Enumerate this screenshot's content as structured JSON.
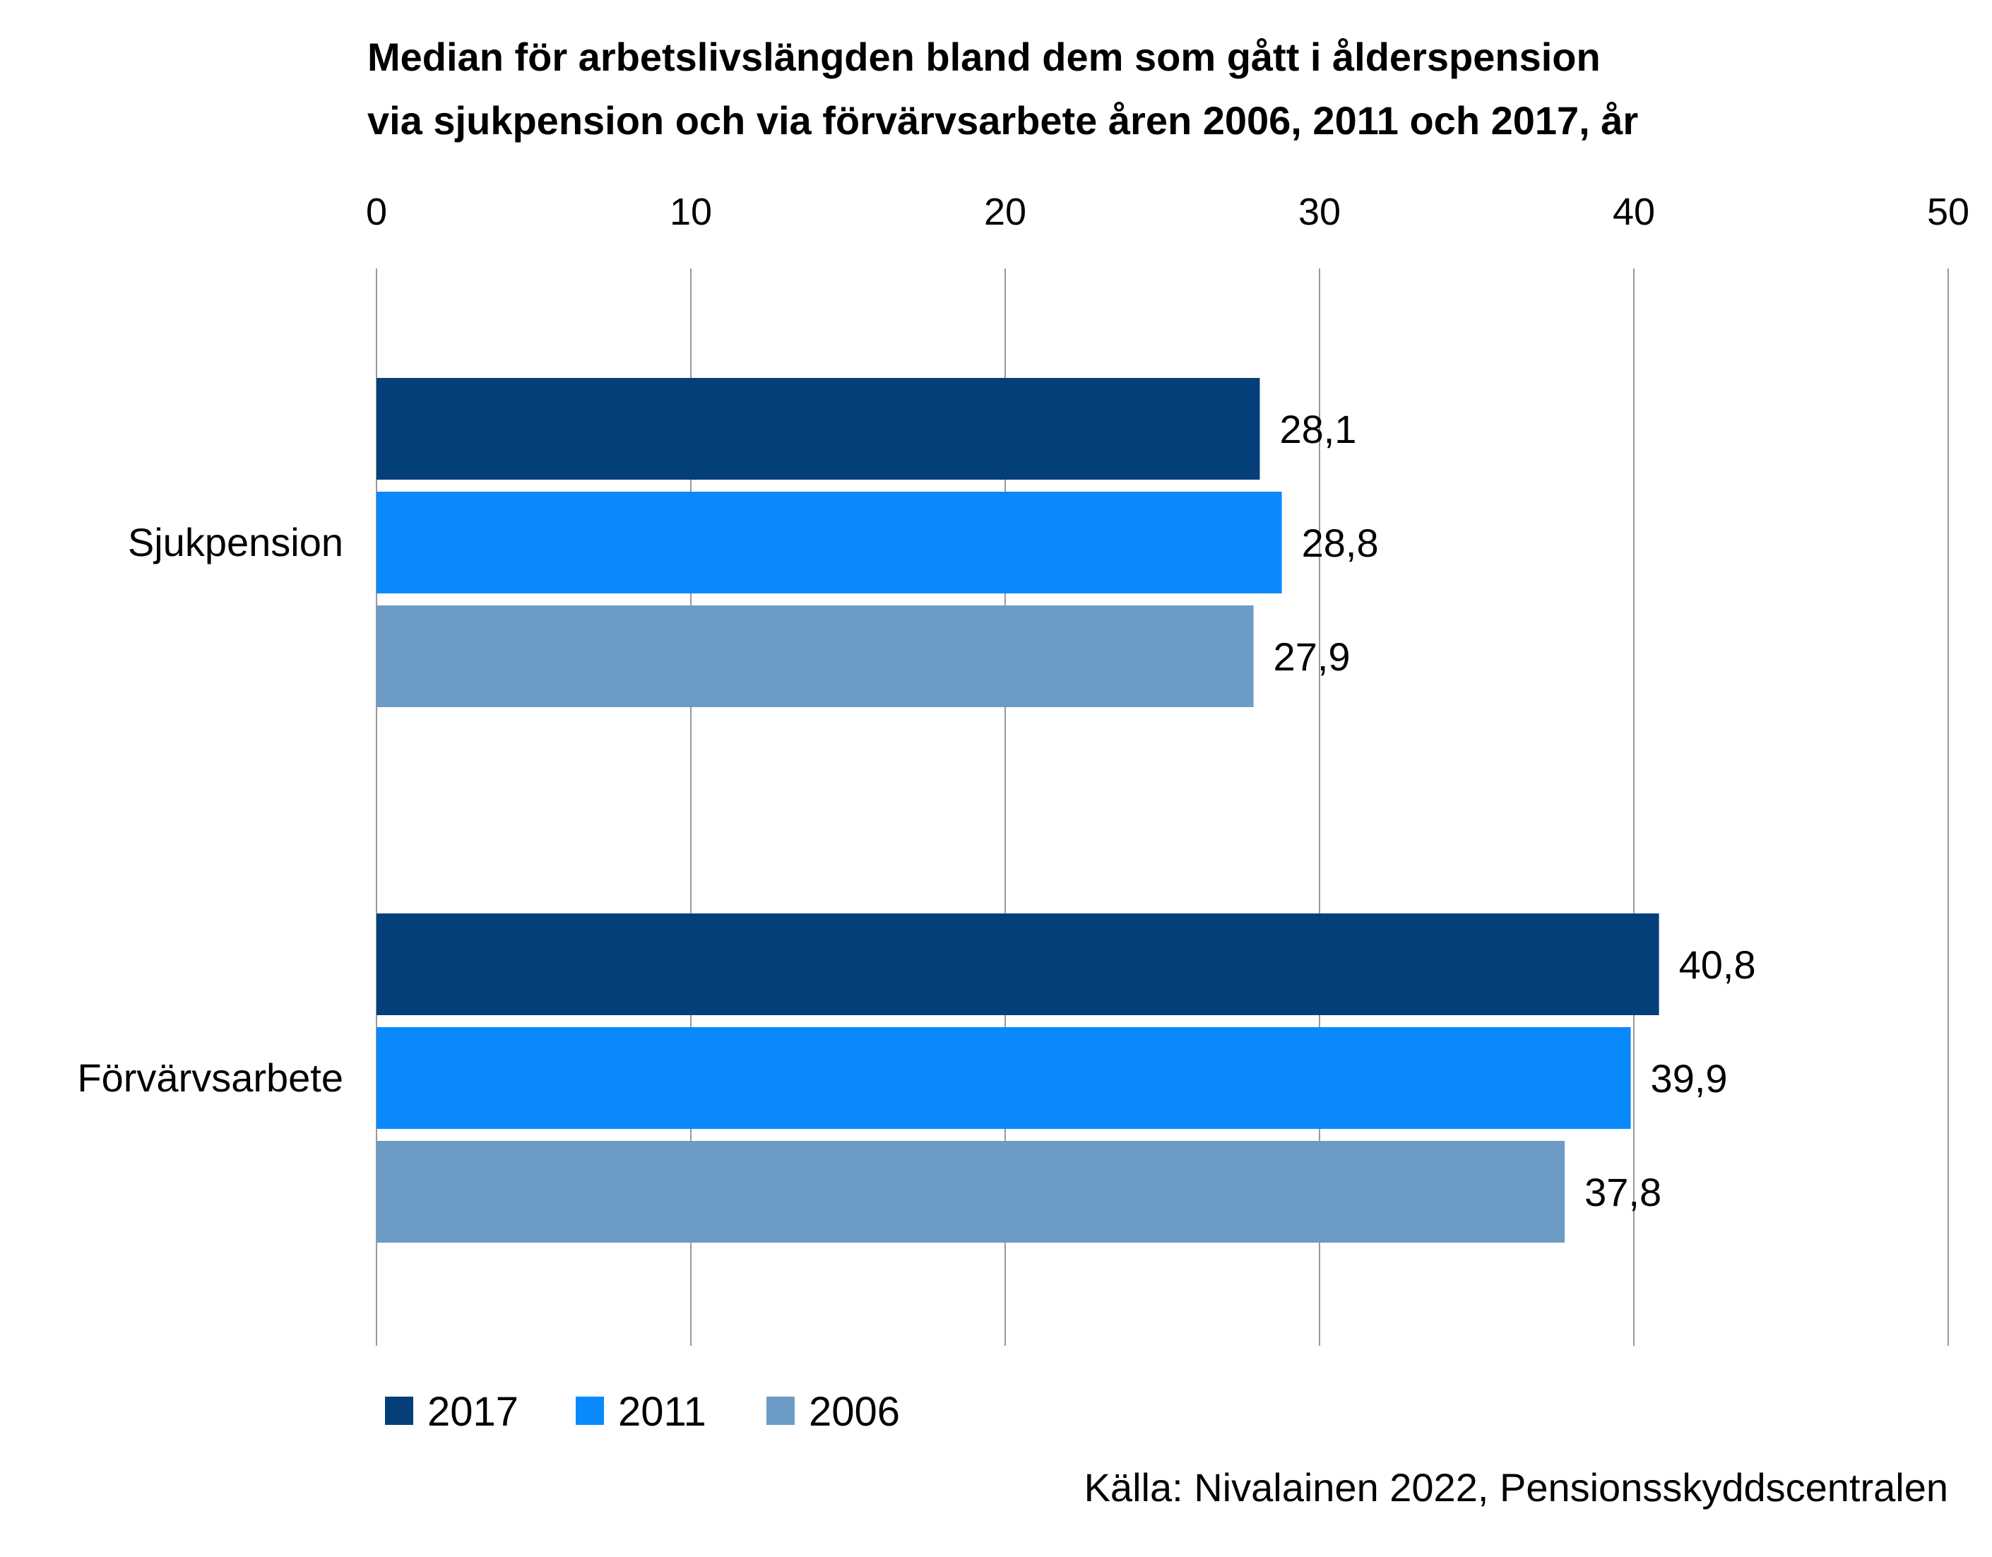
{
  "chart_data": {
    "type": "bar",
    "orientation": "horizontal",
    "title": "Median för arbetslivslängden bland dem som gått i ålderspension via sjukpension och via förvärvsarbete åren 2006, 2011 och 2017, år",
    "title_lines": [
      "Median för arbetslivslängden bland dem som gått i ålderspension",
      "via sjukpension och via förvärvsarbete åren 2006, 2011 och 2017, år"
    ],
    "categories": [
      "Sjukpension",
      "Förvärvsarbete"
    ],
    "series": [
      {
        "name": "2017",
        "color": "#053F7A",
        "values": [
          28.1,
          40.8
        ],
        "labels": [
          "28,1",
          "40,8"
        ]
      },
      {
        "name": "2011",
        "color": "#0A89FD",
        "values": [
          28.8,
          39.9
        ],
        "labels": [
          "28,8",
          "39,9"
        ]
      },
      {
        "name": "2006",
        "color": "#6C9BC5",
        "values": [
          27.9,
          37.8
        ],
        "labels": [
          "27,9",
          "37,8"
        ]
      }
    ],
    "xlim": [
      0,
      50
    ],
    "xticks": [
      0,
      10,
      20,
      30,
      40,
      50
    ],
    "x_axis_position": "top",
    "grid": true,
    "legend_position": "bottom-left",
    "xlabel": "",
    "ylabel": ""
  },
  "source": "Källa: Nivalainen 2022, Pensionsskyddscentralen"
}
